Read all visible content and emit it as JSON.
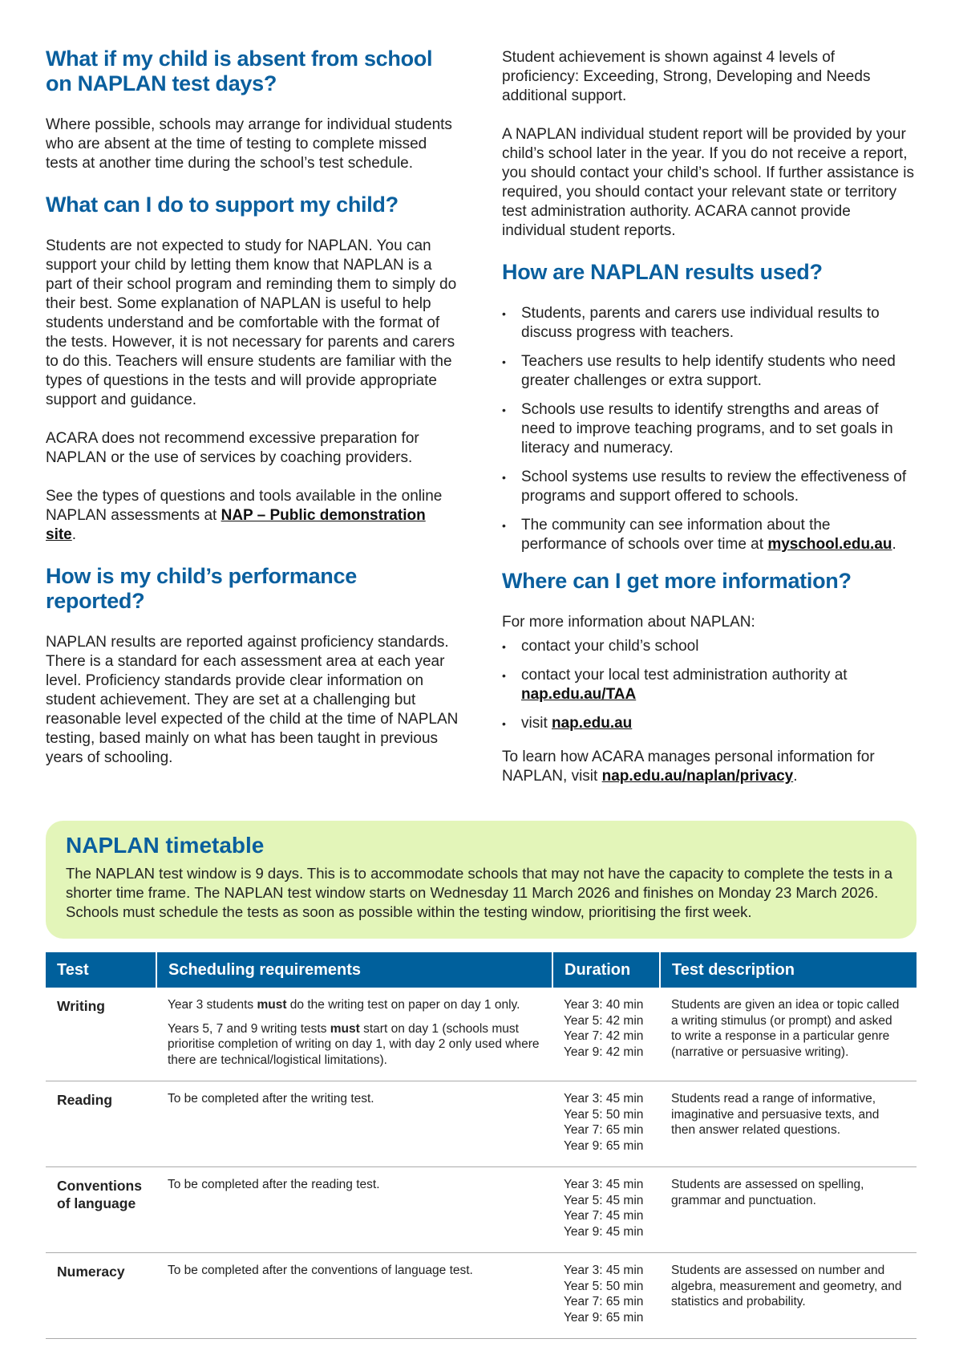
{
  "left": {
    "h1": "What if my child is absent from school on NAPLAN test days?",
    "p1": "Where possible, schools may arrange for individual students who are absent at the time of testing to complete missed tests at another time during the school’s test schedule.",
    "h2": "What can I do to support my child?",
    "p2": "Students are not expected to study for NAPLAN. You can support your child by letting them know that NAPLAN is a part of their school program and reminding them to simply do their best. Some explanation of NAPLAN is useful to help students understand and be comfortable with the format of the tests. However, it is not necessary for parents and carers to do this. Teachers will ensure students are familiar with the types of questions in the tests and will provide appropriate support and guidance.",
    "p3": "ACARA does not recommend excessive preparation for NAPLAN or the use of services by coaching providers.",
    "p4_pre": "See the types of questions and tools available in the online NAPLAN assessments at ",
    "p4_link": "NAP – Public demonstration site",
    "p4_post": ".",
    "h3": "How is my child’s performance reported?",
    "p5": "NAPLAN results are reported against proficiency standards. There is a standard for each assessment area at each year level. Proficiency standards provide clear information on student achievement. They are set at a challenging but reasonable level expected of the child at the time of NAPLAN testing, based mainly on what has been taught in previous years of schooling."
  },
  "right": {
    "p1": "Student achievement is shown against 4 levels of proficiency: Exceeding, Strong, Developing and Needs additional support.",
    "p2": "A NAPLAN individual student report will be provided by your child’s school later in the year. If you do not receive a report, you should contact your child’s school. If further assistance is required, you should contact your relevant state or territory test administration authority. ACARA cannot provide individual student reports.",
    "h1": "How are NAPLAN results used?",
    "bullets": [
      "Students, parents and carers use individual results to discuss progress with teachers.",
      "Teachers use results to help identify students who need greater challenges or extra support.",
      "Schools use results to identify strengths and areas of need to improve teaching programs, and to set goals in literacy and numeracy.",
      "School systems use results to review the effectiveness of programs and support offered to schools.",
      "The community can see information about the performance of schools over time at "
    ],
    "bullet5_link": "myschool.edu.au",
    "h2": "Where can I get more information?",
    "p3": "For more information about NAPLAN:",
    "info": [
      "contact your child’s school",
      "contact your local test administration authority at ",
      "visit "
    ],
    "info_links": [
      "nap.edu.au/TAA",
      "nap.edu.au"
    ],
    "p4_pre": "To learn how ACARA manages personal information for NAPLAN, visit ",
    "p4_link": "nap.edu.au/naplan/privacy",
    "p4_post": "."
  },
  "timetable": {
    "title": "NAPLAN timetable",
    "t1": "The NAPLAN test window is 9 days. This is to accommodate schools that may not have the capacity to complete the tests in a shorter time frame. ",
    "t2": "The NAPLAN test window starts on Wednesday 11 March 2026 and finishes on Monday 23 March 2026.",
    "t3": " Schools ",
    "t4": "must",
    "t5": " schedule the tests as soon as possible within the testing window, prioritising the first week."
  },
  "table": {
    "headers": [
      "Test",
      "Scheduling requirements",
      "Duration",
      "Test description"
    ],
    "rows": [
      {
        "test": "Writing",
        "sched_a_pre": "Year 3 students ",
        "sched_a_bold": "must",
        "sched_a_post": " do the writing test on paper on day 1 only.",
        "sched_b_pre": "Years 5, 7 and 9 writing tests ",
        "sched_b_bold": "must",
        "sched_b_post": " start on day 1 (schools must prioritise completion of writing on day 1, with day 2 only used where there are technical/logistical limitations).",
        "duration": [
          "Year 3: 40 min",
          "Year 5: 42 min",
          "Year 7: 42 min",
          "Year 9: 42 min"
        ],
        "desc": "Students are given an idea or topic called a writing stimulus (or prompt) and asked to write a response in a particular genre (narrative or persuasive writing)."
      },
      {
        "test": "Reading",
        "sched": "To be completed after the writing test.",
        "duration": [
          "Year 3: 45 min",
          "Year 5: 50 min",
          "Year 7: 65 min",
          "Year 9: 65 min"
        ],
        "desc": "Students read a range of informative, imaginative and persuasive texts, and then answer related questions."
      },
      {
        "test": "Conventions of language",
        "sched": "To be completed after the reading test.",
        "duration": [
          "Year 3: 45 min",
          "Year 5: 45 min",
          "Year 7: 45 min",
          "Year 9: 45 min"
        ],
        "desc": "Students are assessed on spelling, grammar and punctuation."
      },
      {
        "test": "Numeracy",
        "sched": "To be completed after the conventions of language test.",
        "duration": [
          "Year 3: 45 min",
          "Year 5: 50 min",
          "Year 7: 65 min",
          "Year 9: 65 min"
        ],
        "desc": "Students are assessed on number and algebra, measurement and geometry, and statistics and probability."
      }
    ]
  },
  "colors": {
    "heading": "#0a5f9e",
    "table_header": "#00609c",
    "highlight_box": "#e3f5b9"
  }
}
